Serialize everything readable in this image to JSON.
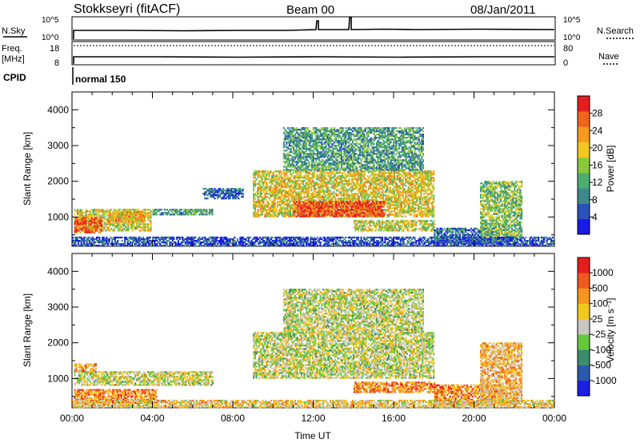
{
  "header": {
    "station": "Stokkseyri (fitACF)",
    "beam": "Beam 00",
    "date": "08/Jan/2011"
  },
  "top_panels": {
    "nsky_label": "N.Sky",
    "nsky_ticks": [
      "10^5",
      "10^0"
    ],
    "nsearch_label": "N.Search",
    "nsearch_ticks": [
      "10^5",
      "10^0"
    ],
    "freq_label_1": "Freq.",
    "freq_label_2": "[MHz]",
    "freq_ticks": [
      "18",
      "8"
    ],
    "nave_label": "Nave",
    "nave_ticks": [
      "80",
      "0"
    ],
    "cpid_label": "CPID",
    "cpid_value": "normal 150"
  },
  "chart_data": [
    {
      "type": "heatmap",
      "panel": "power",
      "ylabel": "Slant Range [km]",
      "xlabel": "",
      "x_tick_labels": [
        "00:00",
        "04:00",
        "08:00",
        "12:00",
        "16:00",
        "20:00",
        "00:00"
      ],
      "x_ticks_hours": [
        0,
        4,
        8,
        12,
        16,
        20,
        24
      ],
      "xlim_hours": [
        0,
        24
      ],
      "ylim_km": [
        180,
        4500
      ],
      "y_ticks": [
        1000,
        2000,
        3000,
        4000
      ],
      "colorbar": {
        "label": "Power [dB]",
        "ticks": [
          "28",
          "24",
          "20",
          "16",
          "12",
          "8",
          "4"
        ],
        "range": [
          0,
          30
        ],
        "colors": [
          "#1a1ae6",
          "#2a52b8",
          "#3d8a8a",
          "#4bae6e",
          "#8cc83c",
          "#f2c81e",
          "#f79a1e",
          "#f0641e",
          "#e61e1e"
        ]
      },
      "regions": [
        {
          "t": [
            0.1,
            3.9
          ],
          "r": [
            600,
            1200
          ],
          "level": 0.55
        },
        {
          "t": [
            0.1,
            1.5
          ],
          "r": [
            550,
            1000
          ],
          "level": 0.85
        },
        {
          "t": [
            1.8,
            3.6
          ],
          "r": [
            850,
            1150
          ],
          "level": 0.7
        },
        {
          "t": [
            4.0,
            7.0
          ],
          "r": [
            1050,
            1200
          ],
          "level": 0.35
        },
        {
          "t": [
            6.5,
            8.5
          ],
          "r": [
            1500,
            1800
          ],
          "level": 0.2
        },
        {
          "t": [
            9.0,
            18.0
          ],
          "r": [
            1000,
            2300
          ],
          "level": 0.6
        },
        {
          "t": [
            11.0,
            15.5
          ],
          "r": [
            1000,
            1450
          ],
          "level": 0.9
        },
        {
          "t": [
            10.5,
            17.5
          ],
          "r": [
            2300,
            3500
          ],
          "level": 0.35
        },
        {
          "t": [
            14.0,
            18.0
          ],
          "r": [
            600,
            900
          ],
          "level": 0.55
        },
        {
          "t": [
            18.0,
            21.0
          ],
          "r": [
            250,
            700
          ],
          "level": 0.25
        },
        {
          "t": [
            20.3,
            22.4
          ],
          "r": [
            300,
            2000
          ],
          "level": 0.45
        },
        {
          "t": [
            0.0,
            24.0
          ],
          "r": [
            180,
            450
          ],
          "level": 0.15
        }
      ]
    },
    {
      "type": "heatmap",
      "panel": "velocity",
      "ylabel": "Slant Range [km]",
      "xlabel": "Time UT",
      "x_tick_labels": [
        "00:00",
        "04:00",
        "08:00",
        "12:00",
        "16:00",
        "20:00",
        "00:00"
      ],
      "x_ticks_hours": [
        0,
        4,
        8,
        12,
        16,
        20,
        24
      ],
      "xlim_hours": [
        0,
        24
      ],
      "ylim_km": [
        180,
        4500
      ],
      "y_ticks": [
        1000,
        2000,
        3000,
        4000
      ],
      "colorbar": {
        "label": "Velocity [m s⁻¹]",
        "ticks": [
          "1000",
          "500",
          "100",
          "25",
          "-25",
          "-100",
          "-500",
          "-1000"
        ],
        "colors": [
          "#1e1ee6",
          "#2a5aaa",
          "#3c8c6e",
          "#64c83c",
          "#c8c8c0",
          "#f2c81e",
          "#f7961e",
          "#f05a1e",
          "#e61e1e"
        ]
      },
      "regions": [
        {
          "t": [
            0.1,
            7.0
          ],
          "r": [
            800,
            1200
          ],
          "level": 0.5
        },
        {
          "t": [
            0.1,
            1.2
          ],
          "r": [
            1200,
            1400
          ],
          "level": 0.7
        },
        {
          "t": [
            0.1,
            4.2
          ],
          "r": [
            300,
            700
          ],
          "level": 0.75
        },
        {
          "t": [
            9.0,
            18.0
          ],
          "r": [
            1000,
            2300
          ],
          "level": 0.5
        },
        {
          "t": [
            10.5,
            17.5
          ],
          "r": [
            2300,
            3500
          ],
          "level": 0.5
        },
        {
          "t": [
            14.0,
            18.0
          ],
          "r": [
            600,
            900
          ],
          "level": 0.75
        },
        {
          "t": [
            18.0,
            21.5
          ],
          "r": [
            250,
            800
          ],
          "level": 0.75
        },
        {
          "t": [
            20.3,
            22.4
          ],
          "r": [
            300,
            2000
          ],
          "level": 0.65
        },
        {
          "t": [
            0.0,
            24.0
          ],
          "r": [
            180,
            400
          ],
          "level": 0.6
        }
      ]
    }
  ]
}
